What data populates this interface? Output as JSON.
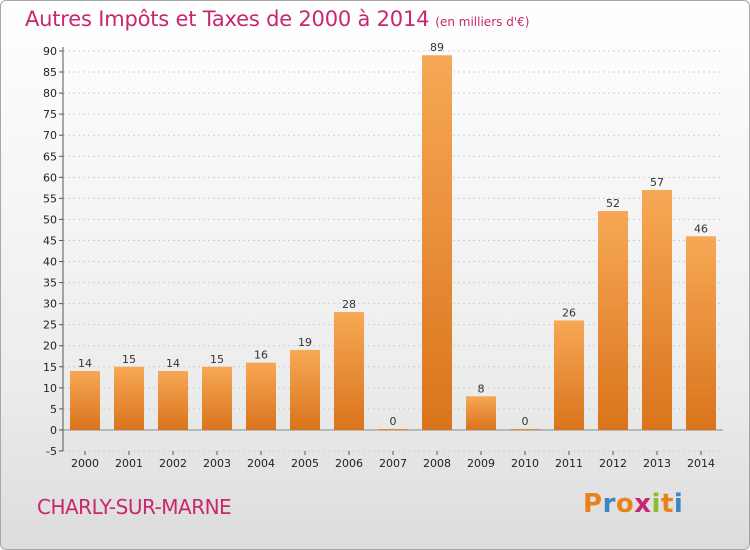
{
  "header": {
    "title": "Autres Impôts et Taxes de 2000 à 2014",
    "unit": "(en milliers d'€)"
  },
  "footer": {
    "location": "CHARLY-SUR-MARNE",
    "logo_letters": [
      "P",
      "r",
      "o",
      "x",
      "i",
      "t",
      "i"
    ],
    "logo_colors": [
      "#e8831a",
      "#3b86c6",
      "#e8831a",
      "#c8266e",
      "#8dbb2a",
      "#e8831a",
      "#3b86c6"
    ]
  },
  "colors": {
    "title": "#c8266e",
    "bar_light": "#f7a855",
    "bar_dark": "#d9741c",
    "grid": "#cfcfcf"
  },
  "chart_data": {
    "type": "bar",
    "title": "Autres Impôts et Taxes de 2000 à 2014",
    "xlabel": "",
    "ylabel": "",
    "categories": [
      "2000",
      "2001",
      "2002",
      "2003",
      "2004",
      "2005",
      "2006",
      "2007",
      "2008",
      "2009",
      "2010",
      "2011",
      "2012",
      "2013",
      "2014"
    ],
    "values": [
      14,
      15,
      14,
      15,
      16,
      19,
      28,
      0,
      89,
      8,
      0,
      26,
      52,
      57,
      46
    ],
    "ylim": [
      -5,
      90
    ],
    "yticks": [
      -5,
      0,
      5,
      10,
      15,
      20,
      25,
      30,
      35,
      40,
      45,
      50,
      55,
      60,
      65,
      70,
      75,
      80,
      85,
      90
    ],
    "grid": true,
    "legend": "none"
  }
}
